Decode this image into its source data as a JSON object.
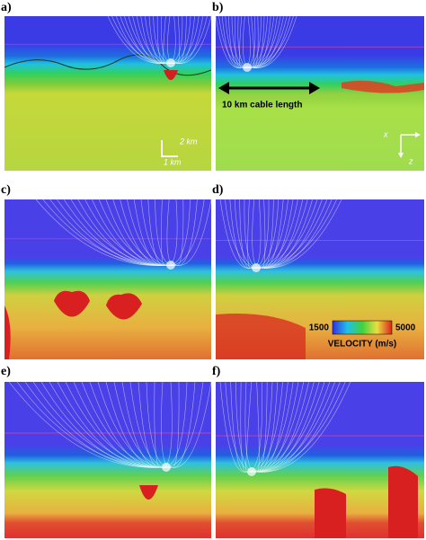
{
  "panels": [
    {
      "label": "a)"
    },
    {
      "label": "b)"
    },
    {
      "label": "c)"
    },
    {
      "label": "d)"
    },
    {
      "label": "e)"
    },
    {
      "label": "f)"
    }
  ],
  "annotations": {
    "scale_vertical": "2 km",
    "scale_horizontal": "1 km",
    "cable": "10 km cable length",
    "axis_x": "x",
    "axis_z": "z"
  },
  "colorbar": {
    "min": "1500",
    "max": "5000",
    "title": "VELOCITY (m/s)"
  }
}
